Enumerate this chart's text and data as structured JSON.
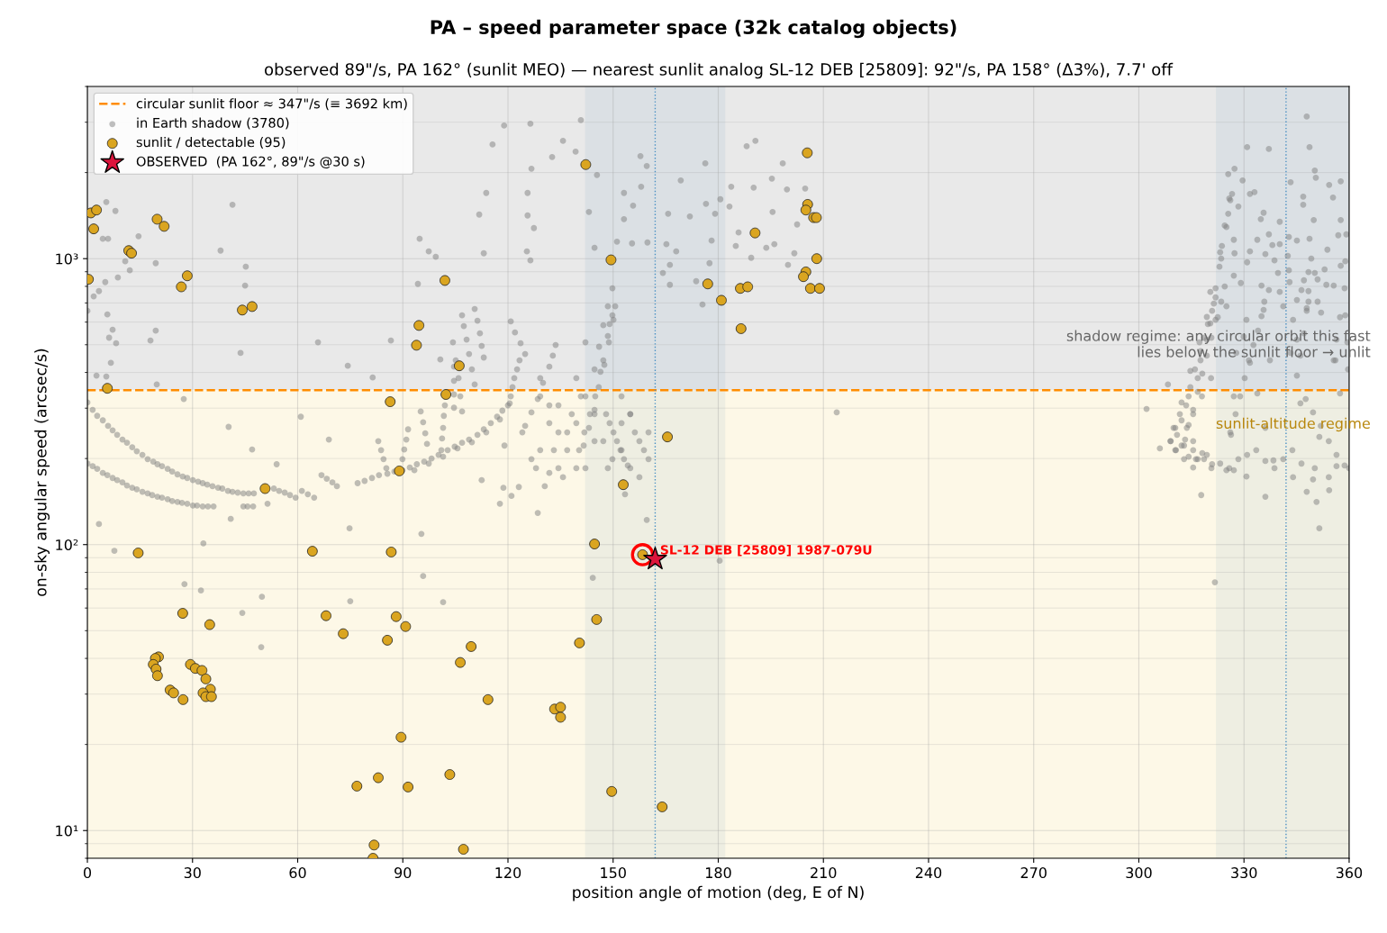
{
  "chart_data": {
    "type": "scatter",
    "title": "PA – speed parameter space (32k catalog objects)",
    "subtitle": "observed 89\"/s, PA 162° (sunlit MEO) — nearest sunlit analog SL-12 DEB [25809]: 92\"/s, PA 158° (Δ3%), 7.7' off",
    "xlabel": "position angle of motion (deg, E of N)",
    "ylabel": "on-sky angular speed (arcsec/s)",
    "log": "y",
    "xlim": [
      0,
      360
    ],
    "ylim": [
      8,
      4000
    ],
    "xticks": [
      0,
      30,
      60,
      90,
      120,
      150,
      180,
      210,
      240,
      270,
      300,
      330,
      360
    ],
    "yticks": [
      {
        "value": 10,
        "label": "10¹"
      },
      {
        "value": 100,
        "label": "10²"
      },
      {
        "value": 1000,
        "label": "10³"
      }
    ],
    "grid": true,
    "legend": "top left",
    "bands": [
      {
        "axis": "y",
        "from": 347,
        "to": 4000,
        "color": "#e9e9e9",
        "label": "shadow regime: any circular orbit this fast\nlies below the sunlit floor → unlit"
      },
      {
        "axis": "y",
        "from": 8,
        "to": 347,
        "color": "#fdf8e7",
        "label": "sunlit-altitude regime"
      },
      {
        "axis": "x",
        "from": 142,
        "to": 182,
        "color": "#4682b4"
      },
      {
        "axis": "x",
        "from": 322,
        "to": 360,
        "color": "#4682b4"
      }
    ],
    "ref_lines": [
      {
        "axis": "y",
        "value": 347,
        "label": "circular sunlit floor ≈ 347\"/s (≡ 3692 km)",
        "color": "#ff8c00",
        "line_style": "dashed"
      },
      {
        "axis": "x",
        "value": 162,
        "color": "#4a90c4",
        "line_style": "dotted"
      },
      {
        "axis": "x",
        "value": 342,
        "color": "#4a90c4",
        "line_style": "dotted"
      }
    ],
    "annotations": [
      {
        "text": "SL-12 DEB [25809] 1987-079U",
        "x": 158.4,
        "y": 92.2
      }
    ],
    "series": [
      {
        "name": "in Earth shadow (3780)",
        "color": "#808080",
        "marker": "circle",
        "x": [
          0,
          1.5,
          2.8,
          4.4,
          5.9,
          7.2,
          8.5,
          10.0,
          11.3,
          12.8,
          14.1,
          15.7,
          17.2,
          18.8,
          20.0,
          21.3,
          22.9,
          24.2,
          25.7,
          27.2,
          28.5,
          30.1,
          31.6,
          32.9,
          34.2,
          35.7,
          37.3,
          38.5,
          40.1,
          41.4,
          42.9,
          44.5,
          46.0,
          47.5,
          53.2,
          54.7,
          56.3,
          57.8,
          59.4,
          61.2,
          62.9,
          64.7,
          66.8,
          68.3,
          69.9,
          71.2,
          77.1,
          79.1,
          81.2,
          83.2,
          85.6,
          87.6,
          89.9,
          0,
          1.5,
          2.8,
          4.4,
          5.7,
          7.2,
          8.5,
          10.0,
          11.3,
          12.8,
          14.1,
          15.7,
          17.2,
          18.5,
          20.0,
          21.3,
          22.9,
          24.2,
          25.7,
          27.0,
          28.5,
          30.1,
          31.3,
          32.9,
          34.4,
          36.0,
          44.5,
          45.7,
          47.3,
          51.4,
          92.0,
          94.0,
          96.1,
          98.2,
          100.2,
          102.8,
          104.8,
          106.9,
          108.9,
          111.3,
          113.1,
          115.1,
          116.9,
          118.4,
          120.0,
          120.8,
          121.3,
          121.8,
          122.6,
          123.3,
          93.3,
          97.4,
          101.5,
          105.6,
          109.7,
          113.8,
          117.7,
          120.5,
          124.9,
          126.7,
          128.5,
          130.0,
          131.8,
          132.8,
          133.6,
          83.0,
          83.8,
          84.5,
          85.3,
          89.9,
          90.4,
          91.0,
          91.5,
          96.9,
          96.4,
          95.8,
          95.1,
          101.0,
          101.2,
          101.5,
          101.7,
          102.0,
          104.6,
          104.6,
          104.6,
          104.6,
          110.5,
          109.7,
          108.9,
          108.2,
          107.4,
          106.9,
          104.3,
          105.1,
          105.9,
          106.4,
          106.9,
          110.5,
          111.3,
          112.0,
          112.5,
          113.1,
          120.8,
          122.0,
          123.6,
          124.9,
          140.3,
          141.8,
          143.4,
          144.9,
          146.4,
          147.2,
          148.5,
          149.0,
          149.8,
          150.6,
          141.6,
          143.1,
          144.7,
          145.9,
          147.5,
          148.8,
          150.1,
          148.0,
          149.0,
          150.1,
          151.1,
          152.1,
          153.1,
          154.2,
          129.2,
          131.8,
          134.4,
          136.9,
          139.5,
          133.1,
          135.7,
          142.1,
          144.7,
          154.9,
          156.2,
          158.8,
          152.4,
          157.5,
          160.1,
          128.0,
          130.5,
          138.2,
          140.8,
          148.5,
          129.2,
          131.8,
          134.4,
          136.9,
          139.5,
          142.1,
          144.7,
          146.0,
          147.2,
          148.5,
          149.8,
          142.1,
          139.5,
          144.7,
          147.2,
          149.8,
          152.4,
          154.9,
          157.5,
          160.1,
          154.9,
          152.4,
          134.4,
          126.7,
          124.1,
          129.2,
          119.0,
          131.8,
          118.9,
          126.4,
          140.8,
          115.6,
          135.7,
          132.6,
          139.3,
          126.7,
          145.4,
          157.8,
          159.6,
          176.3,
          188.1,
          190.6,
          169.3,
          183.7,
          198.4,
          195.3,
          199.6,
          190.1,
          204.8,
          113.8,
          125.6,
          111.8,
          125.6,
          127.4,
          143.1,
          153.1,
          153.1,
          155.7,
          158.0,
          165.7,
          171.9,
          176.5,
          180.6,
          183.2,
          179.1,
          195.5,
          202.5,
          185.8,
          178.1,
          185.0,
          189.4,
          193.7,
          196.0,
          201.7,
          199.9,
          113.1,
          125.4,
          126.4,
          144.7,
          151.1,
          155.4,
          159.8,
          165.2,
          168.0,
          166.2,
          166.2,
          164.2,
          177.5,
          173.7,
          175.5,
          213.8,
          5.4,
          8.0,
          4.4,
          5.9,
          14.6,
          10.8,
          8.7,
          12.1,
          19.5,
          5.7,
          7.2,
          6.2,
          8.2,
          6.7,
          2.6,
          5.4,
          19.5,
          18.0,
          19.8,
          27.5,
          38.0,
          45.2,
          45.0,
          41.4,
          43.7,
          65.8,
          86.6,
          74.3,
          81.4,
          94.8,
          97.4,
          99.4,
          94.3,
          100.7,
          40.3,
          47.0,
          60.9,
          68.9,
          54.0,
          0,
          1.8,
          3.3,
          5.1,
          3.3,
          7.7,
          27.7,
          32.4,
          33.1,
          40.9,
          44.2,
          49.8,
          49.6,
          74.8,
          75.0,
          95.3,
          95.8,
          101.5,
          112.5,
          118.7,
          123.1,
          121.0,
          117.7,
          128.5,
          159.6,
          144.2,
          180.4,
          153.4,
          347.9,
          330.9,
          337.1,
          348.7,
          327.3,
          325.5,
          329.6,
          350.2,
          350.5,
          343.3,
          354.3,
          357.6,
          355.4,
          346.9,
          346.9,
          326.6,
          325.5,
          326.1,
          328.4,
          331.7,
          333.0,
          349.9,
          357.6,
          356.9,
          340.2,
          335.6,
          334.8,
          337.1,
          333.8,
          342.8,
          345.1,
          348.7,
          340.2,
          338.1,
          331.7,
          327.3,
          323.7,
          325.0,
          327.1,
          336.1,
          353.8,
          353.0,
          357.6,
          349.2,
          342.5,
          338.7,
          339.7,
          342.8,
          330.9,
          323.5,
          323.0,
          327.1,
          329.1,
          343.0,
          348.4,
          351.0,
          353.5,
          355.6,
          320.4,
          324.5,
          321.4,
          322.5,
          325.0,
          335.0,
          337.1,
          335.8,
          335.6,
          335.0,
          340.2,
          341.2,
          345.1,
          346.4,
          347.1,
          344.0,
          348.4,
          347.9,
          351.0,
          352.0,
          357.4,
          320.4,
          319.4,
          317.6,
          329.9,
          330.7,
          327.8,
          345.1,
          343.3,
          356.4,
          356.1,
          337.4,
          331.7,
          316.8,
          314.2,
          311.7,
          310.4,
          309.0,
          310.4,
          312.9,
          316.8,
          319.4,
          313.7,
          315.5,
          318.0,
          320.6,
          312.9,
          315.5,
          327.1,
          326.1,
          325.0,
          333.8,
          336.1,
          338.4,
          346.1,
          351.5,
          356.4,
          355.6,
          357.4,
          360,
          321.9,
          323.2,
          324.5,
          325.8,
          308.3,
          302.2,
          306.0,
          317.8,
          321.7,
          336.1,
          350.7,
          351.5,
          349.7,
          354.3,
          315.5,
          330.7,
          320.9,
          327.1,
          344.0,
          347.9,
          321.9,
          320.9,
          319.7,
          318.6,
          317.6,
          316.0,
          314.7,
          313.5,
          312.2,
          310.9,
          312.2,
          314.2,
          316.3,
          318.6,
          323.5,
          321.9,
          320.7,
          319.4,
          318.1,
          316.8,
          315.5,
          314.2,
          313.2,
          315.5,
          318.1,
          319.4,
          317.3,
          314.7,
          312.2,
          309.9,
          309.1,
          310.6,
          326.3,
          327.6,
          328.9,
          330.2,
          331.4,
          332.7,
          334.0,
          345.1,
          346.1,
          347.1,
          347.9,
          348.4,
          350.2,
          347.6,
          349.7,
          351.9,
          354.2,
          356.4,
          358.7,
          359.2,
          358.9,
          358.7,
          358.9,
          359.5,
          359.7,
          320.7,
          323.2,
          325.8,
          328.4,
          330.9,
          333.5,
          336.1,
          338.7,
          341.2,
          343.8,
          346.4,
          350.2,
          354.2
        ],
        "values": [
          314,
          296,
          282,
          272,
          260,
          251,
          242,
          233,
          227,
          219,
          212,
          206,
          199,
          195,
          191,
          188,
          184,
          180,
          176,
          173,
          171,
          168,
          166,
          164,
          162,
          160,
          158,
          157,
          154,
          153,
          152,
          151,
          151,
          151,
          157,
          154,
          152,
          149,
          146,
          154,
          150,
          146,
          175,
          170,
          165,
          160,
          164,
          167,
          171,
          175,
          177,
          180,
          182,
          192,
          188,
          184,
          178,
          175,
          171,
          168,
          165,
          161,
          158,
          156,
          153,
          151,
          149,
          147,
          146,
          144,
          142,
          141,
          140,
          139,
          137,
          137,
          136,
          136,
          136,
          136,
          136,
          136,
          139,
          186,
          191,
          195,
          200,
          206,
          214,
          220,
          227,
          233,
          242,
          253,
          266,
          280,
          294,
          307,
          330,
          355,
          382,
          410,
          441,
          182,
          192,
          203,
          217,
          228,
          247,
          274,
          312,
          260,
          290,
          323,
          368,
          419,
          458,
          499,
          230,
          214,
          199,
          185,
          199,
          215,
          233,
          253,
          225,
          245,
          268,
          292,
          214,
          235,
          256,
          282,
          307,
          301,
          335,
          374,
          419,
          363,
          410,
          464,
          521,
          581,
          634,
          510,
          441,
          382,
          330,
          292,
          667,
          607,
          548,
          495,
          451,
          603,
          552,
          506,
          464,
          214,
          247,
          286,
          330,
          402,
          441,
          536,
          590,
          634,
          681,
          222,
          256,
          296,
          355,
          425,
          510,
          611,
          286,
          266,
          247,
          230,
          214,
          199,
          189,
          330,
          266,
          307,
          247,
          185,
          214,
          172,
          185,
          230,
          286,
          247,
          214,
          266,
          172,
          199,
          185,
          160,
          286,
          330,
          185,
          382,
          307,
          247,
          214,
          266,
          330,
          410,
          492,
          585,
          681,
          788,
          510,
          382,
          286,
          230,
          199,
          214,
          185,
          230,
          247,
          286,
          330,
          185,
          199,
          247,
          214,
          222,
          178,
          2920,
          2963,
          3050,
          2508,
          2581,
          2266,
          2367,
          2063,
          1961,
          2283,
          2108,
          2154,
          2472,
          2581,
          1877,
          1785,
          2154,
          1905,
          1746,
          1772,
          1759,
          1697,
          1697,
          1426,
          1416,
          1279,
          1457,
          1697,
          1375,
          1533,
          1785,
          1436,
          1405,
          1555,
          1613,
          1522,
          1436,
          1457,
          1317,
          1234,
          1156,
          1107,
          1007,
          1091,
          1123,
          1044,
          951,
          1044,
          1060,
          986,
          1091,
          1147,
          1131,
          1139,
          1123,
          1060,
          951,
          810,
          891,
          964,
          834,
          691,
          290,
          1578,
          1468,
          1173,
          1173,
          1198,
          979,
          859,
          910,
          964,
          638,
          564,
          529,
          506,
          432,
          390,
          387,
          560,
          517,
          363,
          323,
          1067,
          937,
          805,
          1544,
          468,
          510,
          517,
          422,
          384,
          1173,
          1060,
          1015,
          816,
          444,
          258,
          215,
          280,
          233,
          191,
          657,
          738,
          770,
          828,
          118,
          95.1,
          72.7,
          69.1,
          101,
          123,
          57.7,
          65.7,
          43.8,
          114,
          63.4,
          109,
          77.6,
          62.9,
          168,
          158,
          159,
          148,
          139,
          129,
          122,
          76.5,
          87.8,
          150,
          3140,
          2454,
          2419,
          2454,
          2063,
          1975,
          1877,
          2033,
          1919,
          1850,
          1811,
          1864,
          1636,
          1648,
          1544,
          1684,
          1436,
          1601,
          1522,
          1684,
          1709,
          1365,
          1365,
          1207,
          1346,
          1447,
          1375,
          1216,
          1164,
          1190,
          1156,
          1173,
          1123,
          1115,
          1060,
          1044,
          1107,
          1289,
          1164,
          1037,
          1075,
          917,
          944,
          1000,
          1022,
          986,
          891,
          910,
          971,
          1000,
          937,
          872,
          822,
          828,
          897,
          846,
          810,
          805,
          765,
          799,
          696,
          624,
          681,
          805,
          776,
          707,
          662,
          629,
          765,
          681,
          717,
          776,
          840,
          611,
          707,
          671,
          707,
          648,
          624,
          594,
          521,
          441,
          533,
          611,
          468,
          521,
          468,
          521,
          441,
          441,
          432,
          382,
          330,
          286,
          256,
          230,
          214,
          199,
          199,
          206,
          256,
          286,
          330,
          382,
          222,
          230,
          330,
          247,
          182,
          338,
          256,
          197,
          312,
          238,
          188,
          441,
          338,
          185,
          788,
          1052,
          1306,
          1624,
          363,
          298,
          217,
          149,
          73.8,
          147,
          141,
          114,
          169,
          155,
          186,
          173,
          191,
          182,
          172,
          153,
          732,
          657,
          590,
          529,
          475,
          410,
          355,
          307,
          272,
          242,
          222,
          203,
          199,
          199,
          707,
          611,
          529,
          458,
          396,
          342,
          296,
          262,
          233,
          214,
          209,
          625,
          510,
          405,
          314,
          256,
          230,
          214,
          242,
          286,
          330,
          382,
          441,
          499,
          560,
          390,
          458,
          548,
          657,
          770,
          891,
          323,
          290,
          260,
          230,
          206,
          189,
          1216,
          979,
          788,
          634,
          510,
          410,
          185,
          192,
          185,
          199,
          206,
          214,
          196,
          185,
          199,
          214,
          192,
          185,
          172
        ]
      },
      {
        "name": "sunlit / detectable (95)",
        "color": "#daa520",
        "marker": "circle",
        "x": [
          0.3,
          1.0,
          2.6,
          1.8,
          11.8,
          12.6,
          19.9,
          21.9,
          28.5,
          26.8,
          44.2,
          47.0,
          5.7,
          102.0,
          94.6,
          93.9,
          106.1,
          102.3,
          86.4,
          89.0,
          50.7,
          14.5,
          64.2,
          86.7,
          27.2,
          34.9,
          68.1,
          73.0,
          88.1,
          90.8,
          85.6,
          106.4,
          20.3,
          19.4,
          18.8,
          19.6,
          20.0,
          29.4,
          30.8,
          32.7,
          33.8,
          35.1,
          33.0,
          33.8,
          35.4,
          23.6,
          24.6,
          27.3,
          89.5,
          76.9,
          83.0,
          91.5,
          103.4,
          81.8,
          81.5,
          107.3,
          142.2,
          149.4,
          177.0,
          180.9,
          186.5,
          186.3,
          188.4,
          190.5,
          205.4,
          205.5,
          205.0,
          207.2,
          208.0,
          208.1,
          205.0,
          204.3,
          206.3,
          208.9,
          165.5,
          152.9,
          144.7,
          158.4,
          145.3,
          140.4,
          109.5,
          114.3,
          133.3,
          135.0,
          135.0,
          149.6,
          164.0
        ],
        "values": [
          847,
          1445,
          1479,
          1271,
          1067,
          1045,
          1374,
          1297,
          871,
          797,
          661,
          680,
          352,
          839,
          584,
          498,
          422,
          335,
          316,
          181,
          157,
          93.5,
          94.8,
          94.2,
          57.5,
          52.5,
          56.4,
          48.8,
          56.0,
          51.7,
          46.3,
          38.7,
          40.5,
          40.0,
          38.1,
          36.7,
          34.8,
          38.1,
          36.9,
          36.3,
          33.9,
          31.2,
          30.3,
          29.4,
          29.4,
          31.0,
          30.3,
          28.7,
          21.2,
          14.3,
          15.3,
          14.2,
          15.7,
          8.9,
          8.0,
          8.6,
          2133,
          990,
          816,
          715,
          569,
          787,
          797,
          1230,
          2344,
          1548,
          1479,
          1392,
          1392,
          1000,
          899,
          865,
          787,
          787,
          238,
          162,
          100.5,
          92.2,
          54.7,
          45.3,
          44.0,
          28.7,
          26.6,
          27.0,
          24.9,
          13.7,
          12.1
        ]
      },
      {
        "name": "OBSERVED  (PA 162°, 89\"/s @30 s)",
        "color": "#dc143c",
        "marker": "star",
        "x": [
          162
        ],
        "values": [
          89
        ]
      }
    ]
  }
}
